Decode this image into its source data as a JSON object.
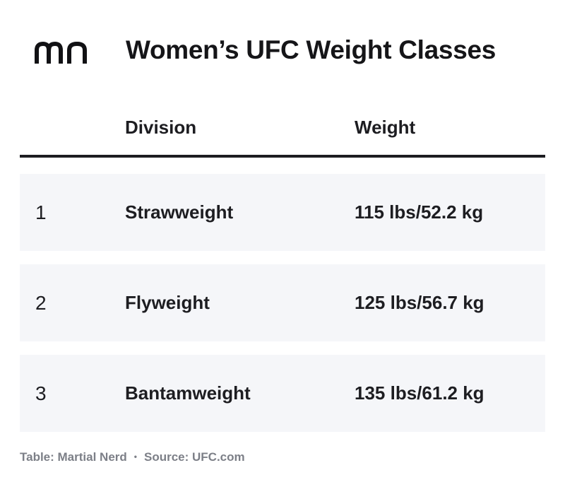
{
  "logo": {
    "text": "mn",
    "icon": "martial-nerd-logo"
  },
  "title": "Women’s UFC Weight Classes",
  "table": {
    "columns": [
      "",
      "Division",
      "Weight"
    ],
    "rows": [
      {
        "num": "1",
        "division": "Strawweight",
        "weight": "115 lbs/52.2 kg"
      },
      {
        "num": "2",
        "division": "Flyweight",
        "weight": "125 lbs/56.7 kg"
      },
      {
        "num": "3",
        "division": "Bantamweight",
        "weight": "135 lbs/61.2 kg"
      }
    ]
  },
  "footer": {
    "table_credit": "Table: Martial Nerd",
    "separator": "•",
    "source": "Source: UFC.com"
  },
  "colors": {
    "text": "#1d1d21",
    "row_background": "#f5f6f9",
    "footer_text": "#7c7f87",
    "rule": "#1d1d21"
  }
}
